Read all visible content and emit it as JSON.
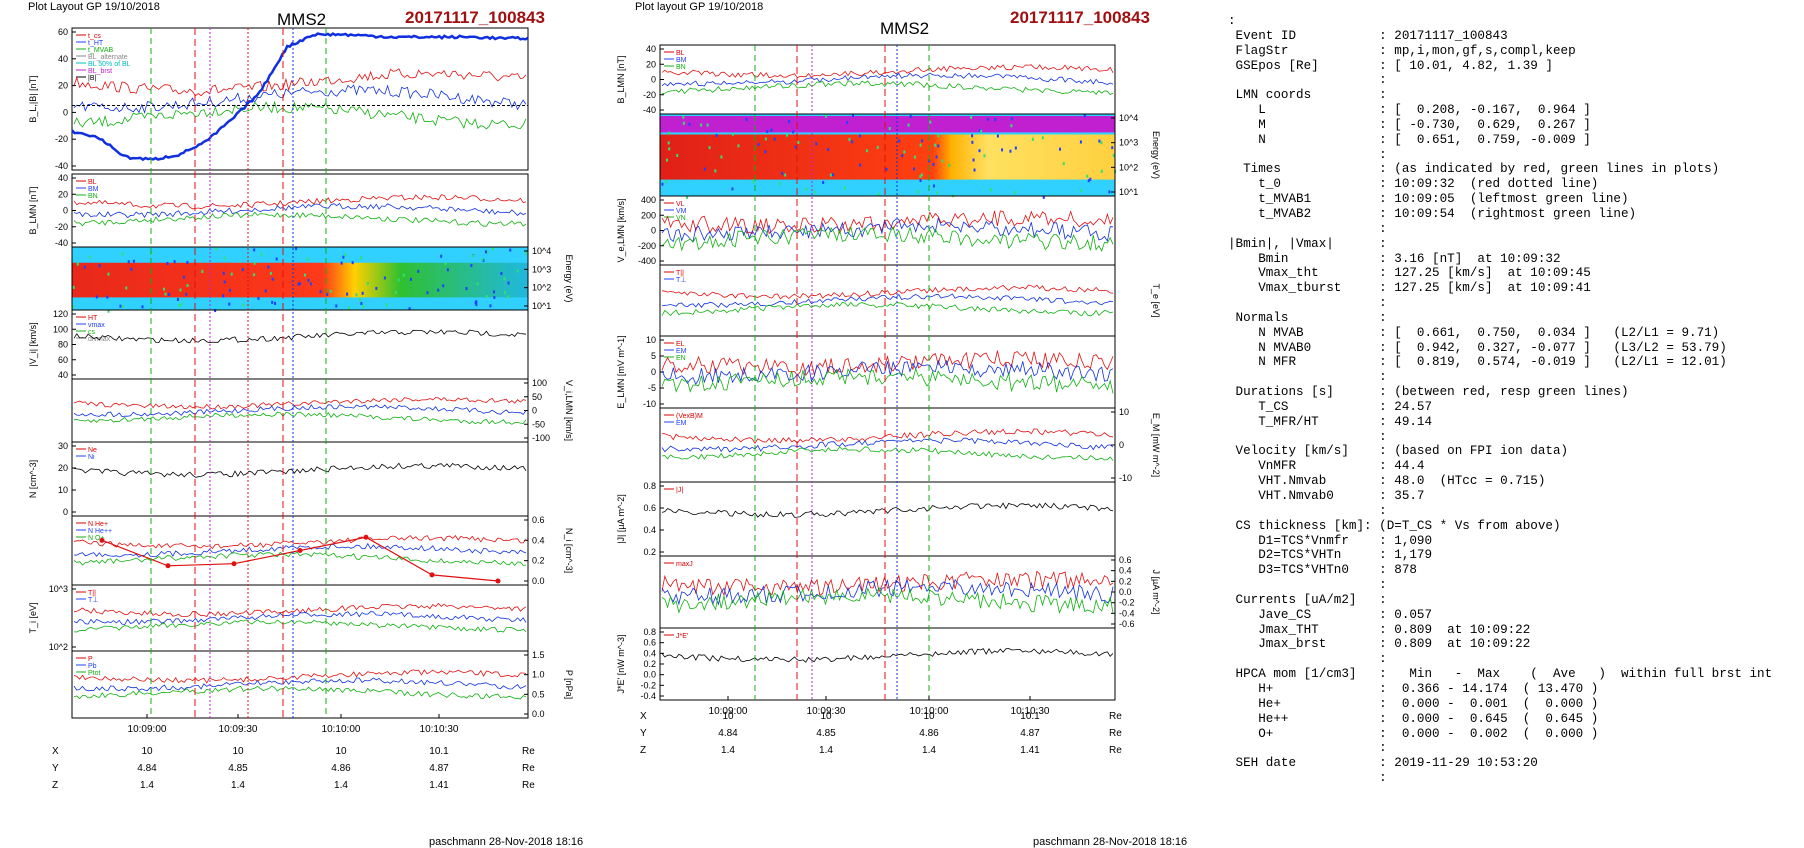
{
  "figure": {
    "layout_label": "Plot Layout GP 19/10/2018",
    "layout_label_mid": "Plot layout GP 19/10/2018",
    "spacecraft": "MMS2",
    "event_id": "20171117_100843",
    "footer": "paschmann 28-Nov-2018 18:16",
    "time_ticks": [
      "10:09:00",
      "10:09:30",
      "10:10:00",
      "10:10:30"
    ],
    "position_rows": [
      {
        "label": "X",
        "values": [
          "10",
          "10",
          "10",
          "10.1"
        ],
        "unit": "Re"
      },
      {
        "label": "Y",
        "values": [
          "4.84",
          "4.85",
          "4.86",
          "4.87"
        ],
        "unit": "Re"
      },
      {
        "label": "Z",
        "values": [
          "1.4",
          "1.4",
          "1.4",
          "1.41"
        ],
        "unit": "Re"
      }
    ]
  },
  "chart_data": [
    {
      "type": "line",
      "title": "MMS2 20171117_100843 (left column)",
      "x": "time 10:08:45 - 10:10:55",
      "panels": [
        {
          "name": "BL",
          "ylabel": "B_L,|B| [nT]",
          "yticks": [
            "60",
            "40",
            "20",
            "0",
            "-20",
            "-40"
          ],
          "ylim": [
            -50,
            60
          ],
          "legend": [
            "t_cs",
            "t_HT",
            "t_MVAB",
            "BL_alternate",
            "BL 50% of BL",
            "BL_brst",
            "|B|"
          ],
          "series": [
            {
              "name": "BL",
              "values": [
                -20,
                -25,
                -40,
                -42,
                -38,
                -28,
                -10,
                10,
                45,
                55,
                55,
                54,
                53,
                53,
                53,
                53,
                52,
                52
              ]
            }
          ]
        },
        {
          "name": "BLMN",
          "ylabel": "B_LMN [nT]",
          "yticks": [
            "40",
            "20",
            "0",
            "-20",
            "-40"
          ],
          "legend": [
            "BL",
            "BM",
            "BN"
          ]
        },
        {
          "name": "ion_spectrogram",
          "ylabel": "Energy (eV)",
          "yticks": [
            "10^4",
            "10^3",
            "10^2",
            "10^1"
          ]
        },
        {
          "name": "Vi",
          "ylabel": "|Vi| [km/s]",
          "yticks": [
            "120",
            "100",
            "80",
            "60",
            "40"
          ],
          "legend": [
            "HT",
            "vmax",
            "cs",
            "divmax"
          ]
        },
        {
          "name": "ViLMN",
          "ylabel": "V_i,LMN [km/s]",
          "yticks": [
            "100",
            "50",
            "0",
            "-50",
            "-100"
          ]
        },
        {
          "name": "N",
          "ylabel": "N [cm^-3]",
          "yticks": [
            "30",
            "20",
            "10",
            "0"
          ],
          "legend": [
            "Ne",
            "Ni"
          ]
        },
        {
          "name": "Ni_hpca",
          "ylabel": "N_i [cm^-3]",
          "yticks": [
            "0.6",
            "0.4",
            "0.2",
            "0.0"
          ],
          "legend": [
            "N He+",
            "N He++",
            "N O+"
          ],
          "series": [
            {
              "name": "N He++",
              "values": [
                0.4,
                0.15,
                0.17,
                0.3,
                0.43,
                0.06,
                0.0
              ]
            }
          ]
        },
        {
          "name": "Ti",
          "ylabel": "T_i [eV]",
          "yticks": [
            "10^3",
            "10^2"
          ],
          "legend": [
            "T||",
            "T⊥"
          ]
        },
        {
          "name": "P",
          "ylabel": "P [nPa]",
          "yticks": [
            "1.5",
            "1.0",
            "0.5",
            "0.0"
          ],
          "legend": [
            "P",
            "Pb",
            "Ptot"
          ]
        }
      ]
    },
    {
      "type": "line",
      "title": "MMS2 20171117_100843 (middle column)",
      "x": "time 10:08:45 - 10:10:55",
      "panels": [
        {
          "name": "BLMN",
          "ylabel": "B_LMN [nT]",
          "yticks": [
            "40",
            "20",
            "0",
            "-20",
            "-40"
          ],
          "legend": [
            "BL",
            "BM",
            "BN"
          ]
        },
        {
          "name": "e_spectrogram",
          "ylabel": "Energy (eV)",
          "yticks": [
            "10^4",
            "10^3",
            "10^2",
            "10^1"
          ]
        },
        {
          "name": "VeLMN",
          "ylabel": "V_e,LMN [km/s]",
          "yticks": [
            "400",
            "200",
            "0",
            "-200",
            "-400"
          ],
          "legend": [
            "VL",
            "VM",
            "VN"
          ]
        },
        {
          "name": "Te",
          "ylabel": "T_e [eV]",
          "legend": [
            "T||",
            "T⊥"
          ]
        },
        {
          "name": "ELMN",
          "ylabel": "E_LMN [mV m^-1]",
          "yticks": [
            "10",
            "5",
            "0",
            "-5",
            "-10"
          ],
          "legend": [
            "EL",
            "EM",
            "EN"
          ]
        },
        {
          "name": "EM",
          "ylabel": "E_M [mW m^-2]",
          "yticks": [
            "10",
            "0",
            "-10"
          ],
          "legend": [
            "(VexB)M",
            "EM"
          ]
        },
        {
          "name": "J",
          "ylabel": "|J| [µA m^-2]",
          "yticks": [
            "0.8",
            "0.6",
            "0.4",
            "0.2"
          ],
          "legend": [
            "|J|"
          ]
        },
        {
          "name": "JLMN",
          "ylabel": "J [µA m^-2]",
          "yticks": [
            "0.6",
            "0.4",
            "0.2",
            "0.0",
            "-0.2",
            "-0.4",
            "-0.6"
          ],
          "legend": [
            "maxJ"
          ]
        },
        {
          "name": "JE",
          "ylabel": "J*E' [nW m^-3]",
          "yticks": [
            "0.8",
            "0.6",
            "0.4",
            "0.2",
            "0.0",
            "-0.2",
            "-0.4"
          ],
          "legend": [
            "J*E'"
          ]
        }
      ]
    }
  ],
  "summary_lines": [
    ":",
    " Event ID           : 20171117_100843",
    " FlagStr            : mp,i,mon,gf,s,compl,keep",
    " GSEpos [Re]        : [ 10.01, 4.82, 1.39 ]",
    "                    :",
    " LMN coords         :",
    "    L               : [  0.208, -0.167,  0.964 ]",
    "    M               : [ -0.730,  0.629,  0.267 ]",
    "    N               : [  0.651,  0.759, -0.009 ]",
    "                    :",
    "  Times             : (as indicated by red, green lines in plots)",
    "    t_0             : 10:09:32  (red dotted line)",
    "    t_MVAB1         : 10:09:05  (leftmost green line)",
    "    t_MVAB2         : 10:09:54  (rightmost green line)",
    "                    :",
    "|Bmin|, |Vmax|      :",
    "    Bmin            : 3.16 [nT]  at 10:09:32",
    "    Vmax_tht        : 127.25 [km/s]  at 10:09:45",
    "    Vmax_tburst     : 127.25 [km/s]  at 10:09:41",
    "                    :",
    " Normals            :",
    "    N MVAB          : [  0.661,  0.750,  0.034 ]   (L2/L1 = 9.71)",
    "    N MVAB0         : [  0.942,  0.327, -0.077 ]   (L3/L2 = 53.79)",
    "    N MFR           : [  0.819,  0.574, -0.019 ]   (L2/L1 = 12.01)",
    "                    :",
    " Durations [s]      : (between red, resp green lines)",
    "    T_CS            : 24.57",
    "    T_MFR/HT        : 49.14",
    "                    :",
    " Velocity [km/s]    : (based on FPI ion data)",
    "    VnMFR           : 44.4",
    "    VHT.Nmvab       : 48.0  (HTcc = 0.715)",
    "    VHT.Nmvab0      : 35.7",
    "                    :",
    " CS thickness [km]: (D=T_CS * Vs from above)",
    "    D1=TCS*Vnmfr    : 1,090",
    "    D2=TCS*VHTn     : 1,179",
    "    D3=TCS*VHTn0    : 878",
    "                    :",
    " Currents [uA/m2]   :",
    "    Jave_CS         : 0.057",
    "    Jmax_THT        : 0.809  at 10:09:22",
    "    Jmax_brst       : 0.809  at 10:09:22",
    "                    :",
    " HPCA mom [1/cm3]   :   Min   -  Max    (  Ave   )  within full brst int",
    "    H+              :  0.366 - 14.174  ( 13.470 )",
    "    He+             :  0.000 -  0.001  (  0.000 )",
    "    He++            :  0.000 -  0.645  (  0.645 )",
    "    O+              :  0.000 -  0.002  (  0.000 )",
    "                    :",
    " SEH date           : 2019-11-29 10:53:20",
    "                    :"
  ]
}
